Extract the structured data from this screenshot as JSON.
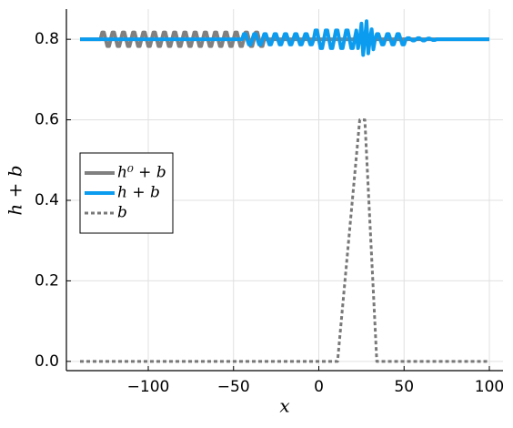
{
  "chart_data": {
    "type": "line",
    "xlabel": "x",
    "ylabel": "h + b",
    "xlim": [
      -148,
      108
    ],
    "ylim": [
      -0.023,
      0.875
    ],
    "xticks": [
      {
        "value": -100,
        "label": "−100"
      },
      {
        "value": -50,
        "label": "−50"
      },
      0,
      50,
      100
    ],
    "yticks": [
      {
        "value": 0,
        "label": "0.0"
      },
      0.2,
      0.4,
      0.6,
      0.8
    ],
    "grid": true,
    "legend": "left",
    "series": [
      {
        "name": "h⁰ + b",
        "color": "#808080",
        "width": 4,
        "dash": false,
        "x": [
          -140,
          -128,
          -127,
          -126,
          -125,
          -124,
          -123,
          -122,
          -121,
          -120,
          -119,
          -118,
          -117,
          -116,
          -115,
          -114,
          -113,
          -112,
          -111,
          -110,
          -109,
          -108,
          -107,
          -106,
          -105,
          -104,
          -103,
          -102,
          -101,
          -100,
          -99,
          -98,
          -97,
          -96,
          -95,
          -94,
          -93,
          -92,
          -91,
          -90,
          -89,
          -88,
          -87,
          -86,
          -85,
          -84,
          -83,
          -82,
          -81,
          -80,
          -79,
          -78,
          -77,
          -76,
          -75,
          -74,
          -73,
          -72,
          -71,
          -70,
          -69,
          -68,
          -67,
          -66,
          -65,
          -64,
          -63,
          -62,
          -61,
          -60,
          -59,
          -58,
          -57,
          -56,
          -55,
          -54,
          -53,
          -52,
          -51,
          -50,
          -49,
          -48,
          -47,
          -46,
          -45,
          -44,
          -43,
          -42,
          -41,
          -40,
          -39,
          -38,
          -37,
          -36,
          -35,
          -34,
          -33,
          -32,
          100
        ],
        "values": [
          0.8,
          0.8,
          0.817,
          0.817,
          0.8,
          0.783,
          0.783,
          0.8,
          0.817,
          0.817,
          0.8,
          0.783,
          0.783,
          0.8,
          0.817,
          0.817,
          0.8,
          0.783,
          0.783,
          0.8,
          0.817,
          0.817,
          0.8,
          0.783,
          0.783,
          0.8,
          0.817,
          0.817,
          0.8,
          0.783,
          0.783,
          0.8,
          0.817,
          0.817,
          0.8,
          0.783,
          0.783,
          0.8,
          0.817,
          0.817,
          0.8,
          0.783,
          0.783,
          0.8,
          0.817,
          0.817,
          0.8,
          0.783,
          0.783,
          0.8,
          0.817,
          0.817,
          0.8,
          0.783,
          0.783,
          0.8,
          0.817,
          0.817,
          0.8,
          0.783,
          0.783,
          0.8,
          0.817,
          0.817,
          0.8,
          0.783,
          0.783,
          0.8,
          0.817,
          0.817,
          0.8,
          0.783,
          0.783,
          0.8,
          0.817,
          0.817,
          0.8,
          0.783,
          0.783,
          0.8,
          0.817,
          0.817,
          0.8,
          0.783,
          0.783,
          0.8,
          0.817,
          0.817,
          0.8,
          0.783,
          0.783,
          0.8,
          0.817,
          0.817,
          0.8,
          0.783,
          0.783,
          0.8,
          0.8
        ]
      },
      {
        "name": "h + b",
        "color": "#0b9cf0",
        "width": 4,
        "dash": false,
        "x": [
          -140,
          -45,
          -44,
          -43,
          -42,
          -41,
          -40,
          -39,
          -38,
          -37,
          -36,
          -35,
          -34,
          -33,
          -32,
          -31,
          -30,
          -29,
          -28,
          -27,
          -26,
          -25,
          -24,
          -23,
          -22,
          -21,
          -20,
          -19,
          -18,
          -17,
          -16,
          -15,
          -14,
          -13,
          -12,
          -11,
          -10,
          -9,
          -8,
          -7,
          -6,
          -5,
          -4,
          -3,
          -2,
          -1,
          0,
          1,
          2,
          3,
          4,
          5,
          6,
          7,
          8,
          9,
          10,
          11,
          12,
          13,
          14,
          15,
          16,
          17,
          18,
          19,
          20,
          21,
          22,
          23,
          24,
          25,
          26,
          27,
          28,
          29,
          30,
          31,
          32,
          33,
          34,
          35,
          36,
          37,
          38,
          39,
          40,
          41,
          42,
          43,
          44,
          45,
          46,
          47,
          48,
          49,
          50,
          51,
          52,
          53,
          54,
          55,
          56,
          57,
          58,
          59,
          60,
          61,
          62,
          63,
          64,
          65,
          66,
          67,
          68,
          69,
          100
        ],
        "values": [
          0.8,
          0.8,
          0.813,
          0.813,
          0.8,
          0.787,
          0.787,
          0.8,
          0.813,
          0.813,
          0.8,
          0.787,
          0.787,
          0.8,
          0.813,
          0.813,
          0.8,
          0.787,
          0.787,
          0.8,
          0.813,
          0.813,
          0.8,
          0.787,
          0.787,
          0.8,
          0.813,
          0.813,
          0.8,
          0.787,
          0.787,
          0.8,
          0.813,
          0.813,
          0.8,
          0.787,
          0.787,
          0.8,
          0.813,
          0.813,
          0.8,
          0.787,
          0.787,
          0.8,
          0.822,
          0.822,
          0.8,
          0.778,
          0.778,
          0.8,
          0.822,
          0.822,
          0.8,
          0.778,
          0.778,
          0.8,
          0.822,
          0.822,
          0.8,
          0.778,
          0.778,
          0.8,
          0.822,
          0.822,
          0.8,
          0.778,
          0.778,
          0.8,
          0.822,
          0.778,
          0.8,
          0.839,
          0.761,
          0.8,
          0.845,
          0.765,
          0.8,
          0.825,
          0.775,
          0.8,
          0.813,
          0.813,
          0.8,
          0.787,
          0.787,
          0.8,
          0.813,
          0.813,
          0.8,
          0.787,
          0.787,
          0.8,
          0.813,
          0.813,
          0.8,
          0.787,
          0.787,
          0.8,
          0.803,
          0.803,
          0.8,
          0.797,
          0.797,
          0.8,
          0.803,
          0.803,
          0.8,
          0.797,
          0.797,
          0.8,
          0.802,
          0.802,
          0.8,
          0.798,
          0.798,
          0.8,
          0.8
        ]
      },
      {
        "name": "b",
        "color": "#787878",
        "width": 3,
        "dash": true,
        "x": [
          -140,
          11,
          24,
          27,
          34,
          100
        ],
        "values": [
          0,
          0,
          0.6,
          0.6,
          0,
          0
        ]
      }
    ]
  }
}
